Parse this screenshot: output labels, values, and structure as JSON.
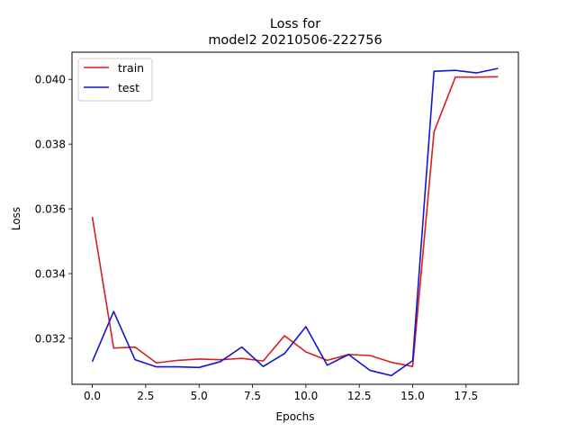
{
  "chart_data": {
    "type": "line",
    "title_lines": [
      "Loss for",
      "model2 20210506-222756"
    ],
    "xlabel": "Epochs",
    "ylabel": "Loss",
    "xlim": [
      -0.95,
      19.95
    ],
    "ylim": [
      0.03058,
      0.04084
    ],
    "x_ticks": [
      0.0,
      2.5,
      5.0,
      7.5,
      10.0,
      12.5,
      15.0,
      17.5
    ],
    "x_tick_labels": [
      "0.0",
      "2.5",
      "5.0",
      "7.5",
      "10.0",
      "12.5",
      "15.0",
      "17.5"
    ],
    "y_ticks": [
      0.032,
      0.034,
      0.036,
      0.038,
      0.04
    ],
    "y_tick_labels": [
      "0.032",
      "0.034",
      "0.036",
      "0.038",
      "0.040"
    ],
    "grid": false,
    "legend_position": "top-left",
    "x": [
      0,
      1,
      2,
      3,
      4,
      5,
      6,
      7,
      8,
      9,
      10,
      11,
      12,
      13,
      14,
      15,
      16,
      17,
      18,
      19
    ],
    "series": [
      {
        "name": "train",
        "color": "#d62020",
        "values": [
          0.03575,
          0.0317,
          0.03173,
          0.03124,
          0.03132,
          0.03136,
          0.03134,
          0.03138,
          0.0313,
          0.03208,
          0.03158,
          0.03132,
          0.0315,
          0.03147,
          0.03126,
          0.03113,
          0.03838,
          0.04007,
          0.04007,
          0.04008
        ]
      },
      {
        "name": "test",
        "color": "#1414d4",
        "values": [
          0.03128,
          0.03283,
          0.03134,
          0.03112,
          0.03112,
          0.0311,
          0.03128,
          0.03173,
          0.03113,
          0.03153,
          0.03236,
          0.03117,
          0.0315,
          0.03101,
          0.03085,
          0.03131,
          0.04025,
          0.04028,
          0.0402,
          0.04034
        ]
      }
    ]
  }
}
